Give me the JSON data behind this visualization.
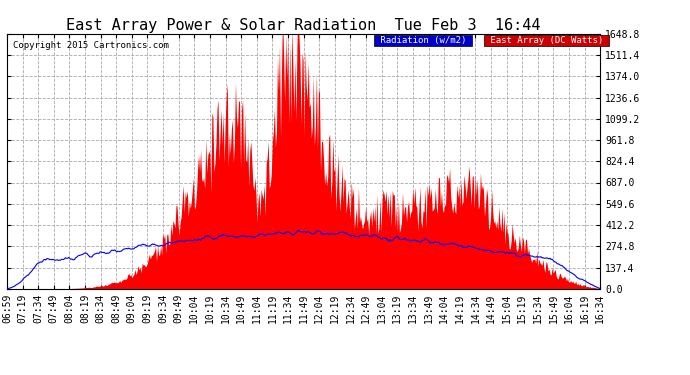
{
  "title": "East Array Power & Solar Radiation  Tue Feb 3  16:44",
  "copyright": "Copyright 2015 Cartronics.com",
  "legend_radiation": "Radiation (w/m2)",
  "legend_east": "East Array (DC Watts)",
  "legend_radiation_bg": "#0000cc",
  "legend_east_bg": "#cc0000",
  "ymin": 0.0,
  "ymax": 1648.8,
  "yticks": [
    0.0,
    137.4,
    274.8,
    412.2,
    549.6,
    687.0,
    824.4,
    961.8,
    1099.2,
    1236.6,
    1374.0,
    1511.4,
    1648.8
  ],
  "background_color": "#ffffff",
  "plot_bg": "#ffffff",
  "grid_color": "#aaaaaa",
  "red_fill_color": "#ff0000",
  "blue_line_color": "#0000ff",
  "xtick_labels": [
    "06:59",
    "07:19",
    "07:34",
    "07:49",
    "08:04",
    "08:19",
    "08:34",
    "08:49",
    "09:04",
    "09:19",
    "09:34",
    "09:49",
    "10:04",
    "10:19",
    "10:34",
    "10:49",
    "11:04",
    "11:19",
    "11:34",
    "11:49",
    "12:04",
    "12:19",
    "12:34",
    "12:49",
    "13:04",
    "13:19",
    "13:34",
    "13:49",
    "14:04",
    "14:19",
    "14:34",
    "14:49",
    "15:04",
    "15:19",
    "15:34",
    "15:49",
    "16:04",
    "16:19",
    "16:34"
  ],
  "title_fontsize": 11,
  "tick_fontsize": 7,
  "legend_fontsize": 7
}
